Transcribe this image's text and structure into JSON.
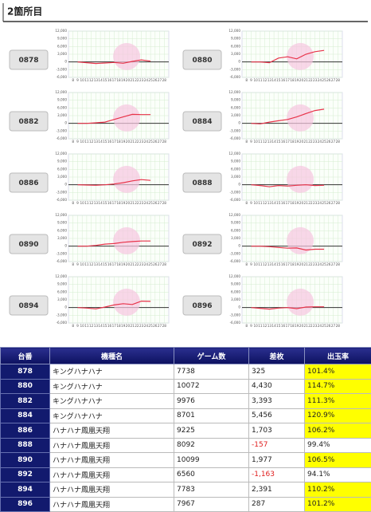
{
  "header": {
    "title": "2箇所目"
  },
  "chart_axis": {
    "ylim": [
      -6000,
      12000
    ],
    "yticks": [
      {
        "value": 12000,
        "label": "12,000"
      },
      {
        "value": 9000,
        "label": "9,000"
      },
      {
        "value": 6000,
        "label": "6,000"
      },
      {
        "value": 3000,
        "label": "3,000"
      },
      0,
      {
        "value": -3000,
        "label": "-3,000"
      },
      {
        "value": -6000,
        "label": "-6,000"
      }
    ],
    "xlim": [
      7,
      29
    ],
    "xticks": [
      8,
      9,
      10,
      11,
      12,
      13,
      14,
      15,
      16,
      17,
      18,
      19,
      20,
      21,
      22,
      23,
      24,
      25,
      26,
      27,
      28
    ]
  },
  "cards": [
    {
      "label": "0878",
      "chart": {
        "type": "line",
        "color": "#e8334a",
        "x": [
          9,
          11,
          13,
          15,
          17,
          19,
          21,
          23,
          25
        ],
        "values": [
          0,
          -300,
          -600,
          -400,
          -200,
          -500,
          200,
          800,
          300
        ]
      }
    },
    {
      "label": "0880",
      "chart": {
        "type": "line",
        "color": "#e8334a",
        "x": [
          9,
          11,
          13,
          15,
          17,
          19,
          21,
          23,
          25
        ],
        "values": [
          0,
          0,
          -300,
          1500,
          2000,
          1200,
          3000,
          4000,
          4500
        ]
      }
    },
    {
      "label": "0882",
      "chart": {
        "type": "line",
        "color": "#e8334a",
        "x": [
          9,
          11,
          13,
          15,
          17,
          19,
          21,
          23,
          25
        ],
        "values": [
          0,
          0,
          200,
          500,
          1500,
          2500,
          3500,
          3400,
          3400
        ]
      }
    },
    {
      "label": "0884",
      "chart": {
        "type": "line",
        "color": "#e8334a",
        "x": [
          9,
          11,
          13,
          15,
          17,
          19,
          21,
          23,
          25
        ],
        "values": [
          0,
          -200,
          500,
          1000,
          1500,
          2500,
          3800,
          5000,
          5500
        ]
      }
    },
    {
      "label": "0886",
      "chart": {
        "type": "line",
        "color": "#e8334a",
        "x": [
          9,
          11,
          13,
          15,
          17,
          19,
          21,
          23,
          25
        ],
        "values": [
          0,
          -100,
          -200,
          0,
          300,
          800,
          1500,
          2000,
          1700
        ]
      }
    },
    {
      "label": "0888",
      "chart": {
        "type": "line",
        "color": "#e8334a",
        "x": [
          9,
          11,
          13,
          15,
          17,
          19,
          21,
          23,
          25
        ],
        "values": [
          0,
          -300,
          -800,
          -300,
          -500,
          -200,
          0,
          -300,
          -200
        ]
      }
    },
    {
      "label": "0890",
      "chart": {
        "type": "line",
        "color": "#e8334a",
        "x": [
          9,
          11,
          13,
          15,
          17,
          19,
          21,
          23,
          25
        ],
        "values": [
          0,
          0,
          300,
          800,
          1000,
          1500,
          1800,
          2000,
          2000
        ]
      }
    },
    {
      "label": "0892",
      "chart": {
        "type": "line",
        "color": "#e8334a",
        "x": [
          9,
          11,
          13,
          15,
          17,
          19,
          21,
          23,
          25
        ],
        "values": [
          0,
          0,
          -200,
          -500,
          -800,
          -700,
          -1500,
          -1200,
          -1200
        ]
      }
    },
    {
      "label": "0894",
      "chart": {
        "type": "line",
        "color": "#e8334a",
        "x": [
          9,
          11,
          13,
          15,
          17,
          19,
          21,
          23,
          25
        ],
        "values": [
          0,
          -200,
          -500,
          200,
          1000,
          1500,
          1200,
          2500,
          2400
        ]
      }
    },
    {
      "label": "0896",
      "chart": {
        "type": "line",
        "color": "#e8334a",
        "x": [
          9,
          11,
          13,
          15,
          17,
          19,
          21,
          23,
          25
        ],
        "values": [
          0,
          -300,
          -600,
          -200,
          0,
          -400,
          200,
          300,
          300
        ]
      }
    }
  ],
  "table": {
    "header": [
      "台番",
      "機種名",
      "ゲーム数",
      "差枚",
      "出玉率"
    ],
    "rows": [
      [
        "878",
        "キングハナハナ",
        "7738",
        "325",
        "101.4%"
      ],
      [
        "880",
        "キングハナハナ",
        "10072",
        "4,430",
        "114.7%"
      ],
      [
        "882",
        "キングハナハナ",
        "9976",
        "3,393",
        "111.3%"
      ],
      [
        "884",
        "キングハナハナ",
        "8701",
        "5,456",
        "120.9%"
      ],
      [
        "886",
        "ハナハナ鳳凰天翔",
        "9225",
        "1,703",
        "106.2%"
      ],
      [
        "888",
        "ハナハナ鳳凰天翔",
        "8092",
        "-157",
        "99.4%"
      ],
      [
        "890",
        "ハナハナ鳳凰天翔",
        "10099",
        "1,977",
        "106.5%"
      ],
      [
        "892",
        "ハナハナ鳳凰天翔",
        "6560",
        "-1,163",
        "94.1%"
      ],
      [
        "894",
        "ハナハナ鳳凰天翔",
        "7783",
        "2,391",
        "110.2%"
      ],
      [
        "896",
        "ハナハナ鳳凰天翔",
        "7967",
        "287",
        "101.2%"
      ]
    ]
  }
}
